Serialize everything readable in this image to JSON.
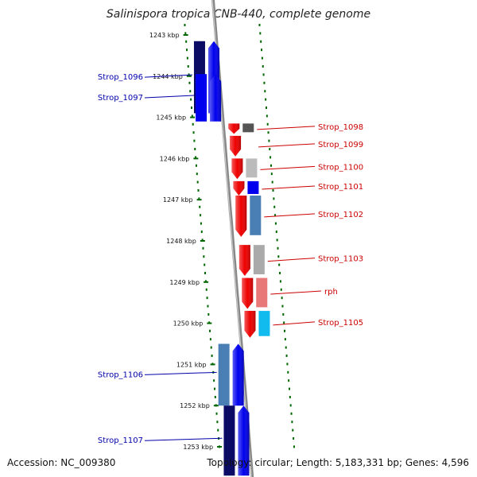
{
  "title": "Salinispora tropica CNB-440, complete genome",
  "footer": {
    "accession": "Accession: NC_009380",
    "topology": "Topology: circular; Length: 5,183,331 bp; Genes: 4,596"
  },
  "ticks": [
    {
      "label": "1243 kbp",
      "kbp": 1243
    },
    {
      "label": "1244 kbp",
      "kbp": 1244
    },
    {
      "label": "1245 kbp",
      "kbp": 1245
    },
    {
      "label": "1246 kbp",
      "kbp": 1246
    },
    {
      "label": "1247 kbp",
      "kbp": 1247
    },
    {
      "label": "1248 kbp",
      "kbp": 1248
    },
    {
      "label": "1249 kbp",
      "kbp": 1249
    },
    {
      "label": "1250 kbp",
      "kbp": 1250
    },
    {
      "label": "1251 kbp",
      "kbp": 1251
    },
    {
      "label": "1252 kbp",
      "kbp": 1252
    },
    {
      "label": "1253 kbp",
      "kbp": 1253
    }
  ],
  "genes": [
    {
      "label": "Strop_1096",
      "strand": "forward",
      "start_kbp": 1243.15,
      "end_kbp": 1244.9,
      "color": "#0000ee",
      "cog_color": "#0b0b66"
    },
    {
      "label": "Strop_1097",
      "strand": "forward",
      "start_kbp": 1243.95,
      "end_kbp": 1245.1,
      "color": "#0000ee",
      "cog_color": "#0000ee"
    },
    {
      "label": "Strop_1098",
      "strand": "reverse",
      "start_kbp": 1245.15,
      "end_kbp": 1245.4,
      "color": "#ee0000",
      "cog_color": "#555555"
    },
    {
      "label": "Strop_1099",
      "strand": "reverse",
      "start_kbp": 1245.45,
      "end_kbp": 1245.95,
      "color": "#ee0000",
      "cog_color": "#ffffff"
    },
    {
      "label": "Strop_1100",
      "strand": "reverse",
      "start_kbp": 1246.0,
      "end_kbp": 1246.5,
      "color": "#ee0000",
      "cog_color": "#bbbbbb"
    },
    {
      "label": "Strop_1101",
      "strand": "reverse",
      "start_kbp": 1246.55,
      "end_kbp": 1246.9,
      "color": "#ee0000",
      "cog_color": "#0000ee"
    },
    {
      "label": "Strop_1102",
      "strand": "reverse",
      "start_kbp": 1246.9,
      "end_kbp": 1247.9,
      "color": "#ee0000",
      "cog_color": "#4a7fb5"
    },
    {
      "label": "Strop_1103",
      "strand": "reverse",
      "start_kbp": 1248.1,
      "end_kbp": 1248.85,
      "color": "#ee0000",
      "cog_color": "#aaaaaa"
    },
    {
      "label": "rph",
      "strand": "reverse",
      "start_kbp": 1248.9,
      "end_kbp": 1249.65,
      "color": "#ee0000",
      "cog_color": "#e87777"
    },
    {
      "label": "Strop_1105",
      "strand": "reverse",
      "start_kbp": 1249.7,
      "end_kbp": 1250.35,
      "color": "#ee0000",
      "cog_color": "#11bbee"
    },
    {
      "label": "Strop_1106",
      "strand": "forward",
      "start_kbp": 1250.5,
      "end_kbp": 1252.0,
      "color": "#0000ee",
      "cog_color": "#4a7fb5"
    },
    {
      "label": "Strop_1107",
      "strand": "forward",
      "start_kbp": 1252.0,
      "end_kbp": 1253.7,
      "color": "#0000ee",
      "cog_color": "#0b0b66"
    }
  ],
  "colors": {
    "backbone": "#888888",
    "dotted_track": "#006600",
    "tick_mark": "#006600",
    "forward_label": "#0000aa",
    "reverse_label": "#cc0000"
  }
}
